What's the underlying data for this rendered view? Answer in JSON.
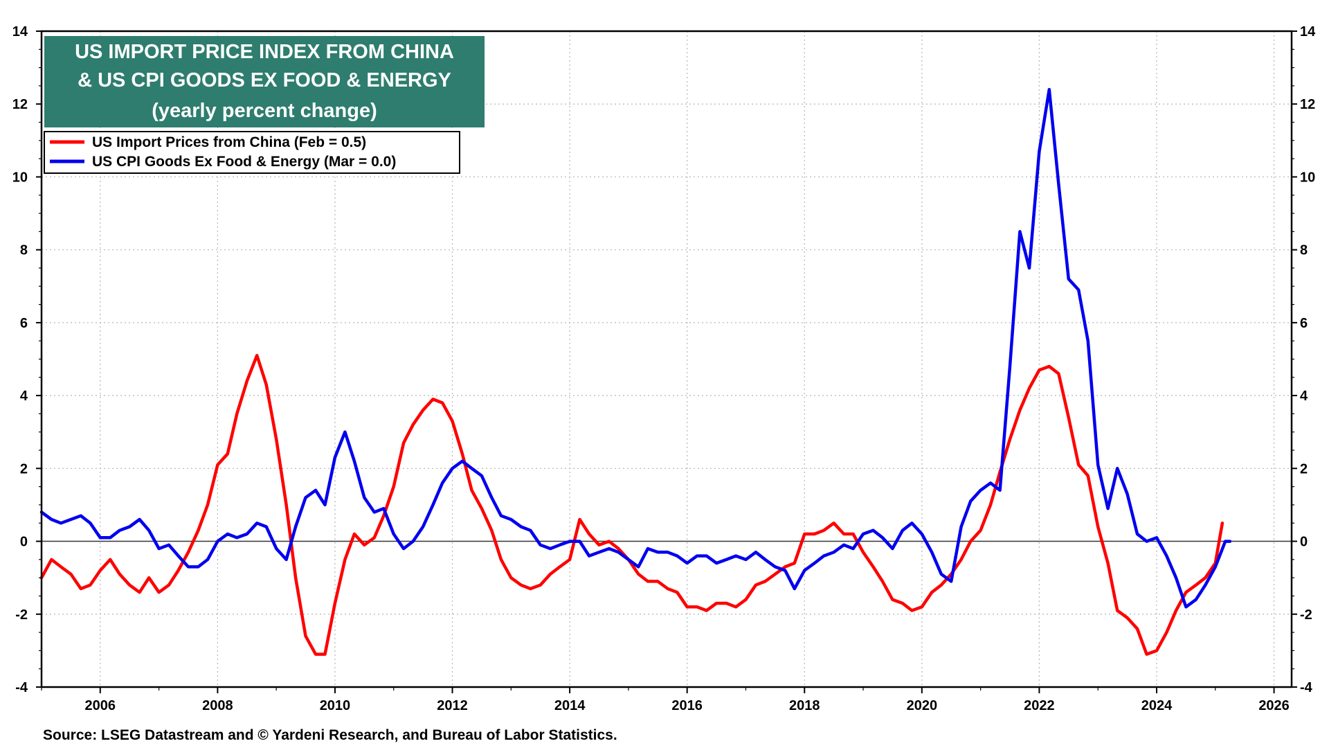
{
  "chart_data": {
    "type": "line",
    "title": {
      "line1": "US IMPORT PRICE INDEX FROM CHINA",
      "line2": "& US CPI GOODS EX FOOD & ENERGY",
      "line3": "(yearly percent change)"
    },
    "title_bg_color": "#2e7d6e",
    "xlim": [
      2005.0,
      2026.3
    ],
    "ylim": [
      -4,
      14
    ],
    "y_ticks": [
      -4,
      -2,
      0,
      2,
      4,
      6,
      8,
      10,
      12,
      14
    ],
    "y_tick_labels": [
      "-4",
      "-2",
      "0",
      "2",
      "4",
      "6",
      "8",
      "10",
      "12",
      "14"
    ],
    "x_ticks": [
      2006,
      2008,
      2010,
      2012,
      2014,
      2016,
      2018,
      2020,
      2022,
      2024,
      2026
    ],
    "x_tick_labels": [
      "2006",
      "2008",
      "2010",
      "2012",
      "2014",
      "2016",
      "2018",
      "2020",
      "2022",
      "2024",
      "2026"
    ],
    "grid": true,
    "legend_position": "top-left",
    "source": "Source: LSEG Datastream and © Yardeni Research, and Bureau of Labor Statistics.",
    "series": [
      {
        "name": "US Import Prices from China  (Feb = 0.5)",
        "color": "#ff0000",
        "points": [
          [
            2005.0,
            -1.0
          ],
          [
            2005.17,
            -0.5
          ],
          [
            2005.33,
            -0.7
          ],
          [
            2005.5,
            -0.9
          ],
          [
            2005.67,
            -1.3
          ],
          [
            2005.83,
            -1.2
          ],
          [
            2006.0,
            -0.8
          ],
          [
            2006.17,
            -0.5
          ],
          [
            2006.33,
            -0.9
          ],
          [
            2006.5,
            -1.2
          ],
          [
            2006.67,
            -1.4
          ],
          [
            2006.83,
            -1.0
          ],
          [
            2007.0,
            -1.4
          ],
          [
            2007.17,
            -1.2
          ],
          [
            2007.33,
            -0.8
          ],
          [
            2007.5,
            -0.3
          ],
          [
            2007.67,
            0.3
          ],
          [
            2007.83,
            1.0
          ],
          [
            2008.0,
            2.1
          ],
          [
            2008.17,
            2.4
          ],
          [
            2008.33,
            3.5
          ],
          [
            2008.5,
            4.4
          ],
          [
            2008.67,
            5.1
          ],
          [
            2008.83,
            4.3
          ],
          [
            2009.0,
            2.8
          ],
          [
            2009.17,
            1.0
          ],
          [
            2009.33,
            -1.0
          ],
          [
            2009.5,
            -2.6
          ],
          [
            2009.67,
            -3.1
          ],
          [
            2009.83,
            -3.1
          ],
          [
            2010.0,
            -1.7
          ],
          [
            2010.17,
            -0.5
          ],
          [
            2010.33,
            0.2
          ],
          [
            2010.5,
            -0.1
          ],
          [
            2010.67,
            0.1
          ],
          [
            2010.83,
            0.7
          ],
          [
            2011.0,
            1.5
          ],
          [
            2011.17,
            2.7
          ],
          [
            2011.33,
            3.2
          ],
          [
            2011.5,
            3.6
          ],
          [
            2011.67,
            3.9
          ],
          [
            2011.83,
            3.8
          ],
          [
            2012.0,
            3.3
          ],
          [
            2012.17,
            2.4
          ],
          [
            2012.33,
            1.4
          ],
          [
            2012.5,
            0.9
          ],
          [
            2012.67,
            0.3
          ],
          [
            2012.83,
            -0.5
          ],
          [
            2013.0,
            -1.0
          ],
          [
            2013.17,
            -1.2
          ],
          [
            2013.33,
            -1.3
          ],
          [
            2013.5,
            -1.2
          ],
          [
            2013.67,
            -0.9
          ],
          [
            2013.83,
            -0.7
          ],
          [
            2014.0,
            -0.5
          ],
          [
            2014.17,
            0.6
          ],
          [
            2014.33,
            0.2
          ],
          [
            2014.5,
            -0.1
          ],
          [
            2014.67,
            0.0
          ],
          [
            2014.83,
            -0.2
          ],
          [
            2015.0,
            -0.5
          ],
          [
            2015.17,
            -0.9
          ],
          [
            2015.33,
            -1.1
          ],
          [
            2015.5,
            -1.1
          ],
          [
            2015.67,
            -1.3
          ],
          [
            2015.83,
            -1.4
          ],
          [
            2016.0,
            -1.8
          ],
          [
            2016.17,
            -1.8
          ],
          [
            2016.33,
            -1.9
          ],
          [
            2016.5,
            -1.7
          ],
          [
            2016.67,
            -1.7
          ],
          [
            2016.83,
            -1.8
          ],
          [
            2017.0,
            -1.6
          ],
          [
            2017.17,
            -1.2
          ],
          [
            2017.33,
            -1.1
          ],
          [
            2017.5,
            -0.9
          ],
          [
            2017.67,
            -0.7
          ],
          [
            2017.83,
            -0.6
          ],
          [
            2018.0,
            0.2
          ],
          [
            2018.17,
            0.2
          ],
          [
            2018.33,
            0.3
          ],
          [
            2018.5,
            0.5
          ],
          [
            2018.67,
            0.2
          ],
          [
            2018.83,
            0.2
          ],
          [
            2019.0,
            -0.3
          ],
          [
            2019.17,
            -0.7
          ],
          [
            2019.33,
            -1.1
          ],
          [
            2019.5,
            -1.6
          ],
          [
            2019.67,
            -1.7
          ],
          [
            2019.83,
            -1.9
          ],
          [
            2020.0,
            -1.8
          ],
          [
            2020.17,
            -1.4
          ],
          [
            2020.33,
            -1.2
          ],
          [
            2020.5,
            -0.9
          ],
          [
            2020.67,
            -0.5
          ],
          [
            2020.83,
            0.0
          ],
          [
            2021.0,
            0.3
          ],
          [
            2021.17,
            1.0
          ],
          [
            2021.33,
            1.9
          ],
          [
            2021.5,
            2.8
          ],
          [
            2021.67,
            3.6
          ],
          [
            2021.83,
            4.2
          ],
          [
            2022.0,
            4.7
          ],
          [
            2022.17,
            4.8
          ],
          [
            2022.33,
            4.6
          ],
          [
            2022.5,
            3.4
          ],
          [
            2022.67,
            2.1
          ],
          [
            2022.83,
            1.8
          ],
          [
            2023.0,
            0.4
          ],
          [
            2023.17,
            -0.6
          ],
          [
            2023.33,
            -1.9
          ],
          [
            2023.5,
            -2.1
          ],
          [
            2023.67,
            -2.4
          ],
          [
            2023.83,
            -3.1
          ],
          [
            2024.0,
            -3.0
          ],
          [
            2024.17,
            -2.5
          ],
          [
            2024.33,
            -1.9
          ],
          [
            2024.5,
            -1.4
          ],
          [
            2024.67,
            -1.2
          ],
          [
            2024.83,
            -1.0
          ],
          [
            2025.0,
            -0.6
          ],
          [
            2025.12,
            0.5
          ]
        ]
      },
      {
        "name": "US CPI Goods Ex Food & Energy (Mar = 0.0)",
        "color": "#0000ee",
        "points": [
          [
            2005.0,
            0.8
          ],
          [
            2005.17,
            0.6
          ],
          [
            2005.33,
            0.5
          ],
          [
            2005.5,
            0.6
          ],
          [
            2005.67,
            0.7
          ],
          [
            2005.83,
            0.5
          ],
          [
            2006.0,
            0.1
          ],
          [
            2006.17,
            0.1
          ],
          [
            2006.33,
            0.3
          ],
          [
            2006.5,
            0.4
          ],
          [
            2006.67,
            0.6
          ],
          [
            2006.83,
            0.3
          ],
          [
            2007.0,
            -0.2
          ],
          [
            2007.17,
            -0.1
          ],
          [
            2007.33,
            -0.4
          ],
          [
            2007.5,
            -0.7
          ],
          [
            2007.67,
            -0.7
          ],
          [
            2007.83,
            -0.5
          ],
          [
            2008.0,
            0.0
          ],
          [
            2008.17,
            0.2
          ],
          [
            2008.33,
            0.1
          ],
          [
            2008.5,
            0.2
          ],
          [
            2008.67,
            0.5
          ],
          [
            2008.83,
            0.4
          ],
          [
            2009.0,
            -0.2
          ],
          [
            2009.17,
            -0.5
          ],
          [
            2009.33,
            0.4
          ],
          [
            2009.5,
            1.2
          ],
          [
            2009.67,
            1.4
          ],
          [
            2009.83,
            1.0
          ],
          [
            2010.0,
            2.3
          ],
          [
            2010.17,
            3.0
          ],
          [
            2010.33,
            2.2
          ],
          [
            2010.5,
            1.2
          ],
          [
            2010.67,
            0.8
          ],
          [
            2010.83,
            0.9
          ],
          [
            2011.0,
            0.2
          ],
          [
            2011.17,
            -0.2
          ],
          [
            2011.33,
            0.0
          ],
          [
            2011.5,
            0.4
          ],
          [
            2011.67,
            1.0
          ],
          [
            2011.83,
            1.6
          ],
          [
            2012.0,
            2.0
          ],
          [
            2012.17,
            2.2
          ],
          [
            2012.33,
            2.0
          ],
          [
            2012.5,
            1.8
          ],
          [
            2012.67,
            1.2
          ],
          [
            2012.83,
            0.7
          ],
          [
            2013.0,
            0.6
          ],
          [
            2013.17,
            0.4
          ],
          [
            2013.33,
            0.3
          ],
          [
            2013.5,
            -0.1
          ],
          [
            2013.67,
            -0.2
          ],
          [
            2013.83,
            -0.1
          ],
          [
            2014.0,
            0.0
          ],
          [
            2014.17,
            0.0
          ],
          [
            2014.33,
            -0.4
          ],
          [
            2014.5,
            -0.3
          ],
          [
            2014.67,
            -0.2
          ],
          [
            2014.83,
            -0.3
          ],
          [
            2015.0,
            -0.5
          ],
          [
            2015.17,
            -0.7
          ],
          [
            2015.33,
            -0.2
          ],
          [
            2015.5,
            -0.3
          ],
          [
            2015.67,
            -0.3
          ],
          [
            2015.83,
            -0.4
          ],
          [
            2016.0,
            -0.6
          ],
          [
            2016.17,
            -0.4
          ],
          [
            2016.33,
            -0.4
          ],
          [
            2016.5,
            -0.6
          ],
          [
            2016.67,
            -0.5
          ],
          [
            2016.83,
            -0.4
          ],
          [
            2017.0,
            -0.5
          ],
          [
            2017.17,
            -0.3
          ],
          [
            2017.33,
            -0.5
          ],
          [
            2017.5,
            -0.7
          ],
          [
            2017.67,
            -0.8
          ],
          [
            2017.83,
            -1.3
          ],
          [
            2018.0,
            -0.8
          ],
          [
            2018.17,
            -0.6
          ],
          [
            2018.33,
            -0.4
          ],
          [
            2018.5,
            -0.3
          ],
          [
            2018.67,
            -0.1
          ],
          [
            2018.83,
            -0.2
          ],
          [
            2019.0,
            0.2
          ],
          [
            2019.17,
            0.3
          ],
          [
            2019.33,
            0.1
          ],
          [
            2019.5,
            -0.2
          ],
          [
            2019.67,
            0.3
          ],
          [
            2019.83,
            0.5
          ],
          [
            2020.0,
            0.2
          ],
          [
            2020.17,
            -0.3
          ],
          [
            2020.33,
            -0.9
          ],
          [
            2020.5,
            -1.1
          ],
          [
            2020.67,
            0.4
          ],
          [
            2020.83,
            1.1
          ],
          [
            2021.0,
            1.4
          ],
          [
            2021.17,
            1.6
          ],
          [
            2021.33,
            1.4
          ],
          [
            2021.5,
            4.8
          ],
          [
            2021.67,
            8.5
          ],
          [
            2021.83,
            7.5
          ],
          [
            2022.0,
            10.7
          ],
          [
            2022.17,
            12.4
          ],
          [
            2022.33,
            9.8
          ],
          [
            2022.5,
            7.2
          ],
          [
            2022.67,
            6.9
          ],
          [
            2022.83,
            5.5
          ],
          [
            2023.0,
            2.1
          ],
          [
            2023.17,
            0.9
          ],
          [
            2023.33,
            2.0
          ],
          [
            2023.5,
            1.3
          ],
          [
            2023.67,
            0.2
          ],
          [
            2023.83,
            0.0
          ],
          [
            2024.0,
            0.1
          ],
          [
            2024.17,
            -0.4
          ],
          [
            2024.33,
            -1.0
          ],
          [
            2024.5,
            -1.8
          ],
          [
            2024.67,
            -1.6
          ],
          [
            2024.83,
            -1.2
          ],
          [
            2025.0,
            -0.7
          ],
          [
            2025.17,
            0.0
          ],
          [
            2025.25,
            0.0
          ]
        ]
      }
    ]
  }
}
